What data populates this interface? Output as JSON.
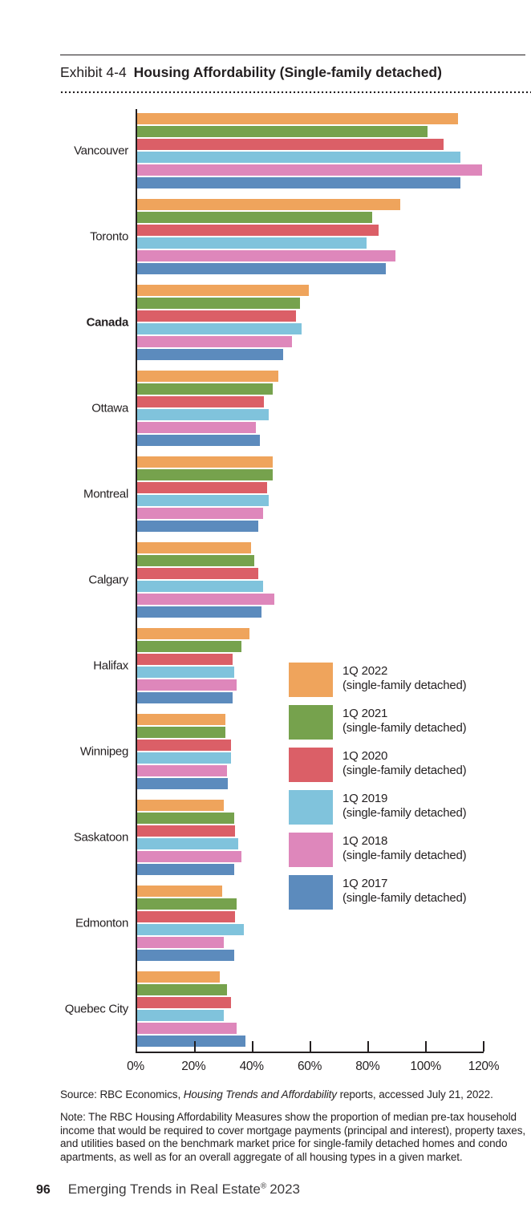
{
  "exhibit": {
    "label": "Exhibit 4-4",
    "title": "Housing Affordability (Single-family detached)"
  },
  "chart_data": {
    "type": "bar",
    "orientation": "horizontal",
    "title": "Housing Affordability (Single-family detached)",
    "categories": [
      "Vancouver",
      "Toronto",
      "Canada",
      "Ottawa",
      "Montreal",
      "Calgary",
      "Halifax",
      "Winnipeg",
      "Saskatoon",
      "Edmonton",
      "Quebec City"
    ],
    "emphasized_category": "Canada",
    "x_axis": {
      "min": 0,
      "max": 120,
      "unit": "%",
      "tick_labels": [
        "0%",
        "20%",
        "40%",
        "60%",
        "80%",
        "100%",
        "120%"
      ]
    },
    "grid": false,
    "legend_position": "middle-right",
    "series": [
      {
        "name": "1Q 2022",
        "sublabel": "(single-family detached)",
        "color": "#EFA45C",
        "values": [
          111,
          91,
          59.5,
          49,
          47,
          39.5,
          39,
          30.5,
          30,
          29.5,
          28.5
        ]
      },
      {
        "name": "1Q 2021",
        "sublabel": "(single-family detached)",
        "color": "#76A24D",
        "values": [
          100.5,
          81.5,
          56.5,
          47,
          47,
          40.5,
          36,
          30.5,
          33.5,
          34.5,
          31
        ]
      },
      {
        "name": "1Q 2020",
        "sublabel": "(single-family detached)",
        "color": "#DB5F67",
        "values": [
          106,
          83.5,
          55,
          44,
          45,
          42,
          33,
          32.5,
          34,
          34,
          32.5
        ]
      },
      {
        "name": "1Q 2019",
        "sublabel": "(single-family detached)",
        "color": "#80C3DC",
        "values": [
          112,
          79.5,
          57,
          45.5,
          45.5,
          43.5,
          33.5,
          32.5,
          35,
          37,
          30
        ]
      },
      {
        "name": "1Q 2018",
        "sublabel": "(single-family detached)",
        "color": "#DE87BB",
        "values": [
          119.5,
          89.5,
          53.5,
          41,
          43.5,
          47.5,
          34.5,
          31,
          36,
          30,
          34.5
        ]
      },
      {
        "name": "1Q 2017",
        "sublabel": "(single-family detached)",
        "color": "#5C8BBD",
        "values": [
          112,
          86,
          50.5,
          42.5,
          42,
          43,
          33,
          31.5,
          33.5,
          33.5,
          37.5
        ]
      }
    ]
  },
  "footer": {
    "source_prefix": "Source: RBC Economics, ",
    "source_italic": "Housing Trends and Affordability",
    "source_suffix": " reports, accessed July 21, 2022.",
    "note": "Note: The RBC Housing Affordability Measures show the proportion of median pre-tax household income that would be required to cover mortgage payments (principal and interest), property taxes, and utilities based on the benchmark market price for single-family detached homes and condo apartments, as well as for an overall aggregate of all housing types in a given market."
  },
  "book": {
    "page_number": "96",
    "title_main": "Emerging Trends in Real Estate",
    "title_sup": "®",
    "title_year": "2023"
  }
}
